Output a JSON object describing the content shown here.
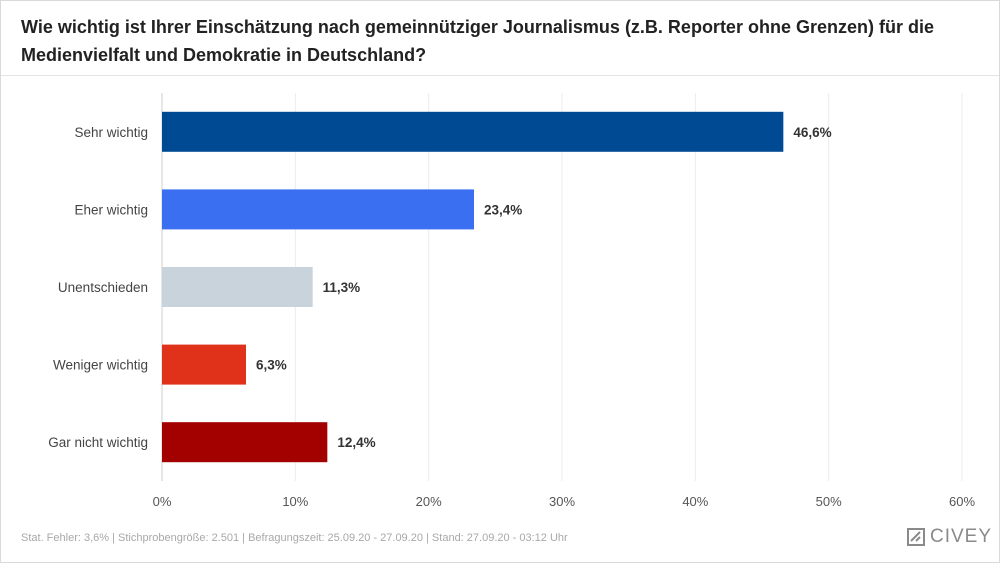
{
  "title": "Wie wichtig ist Ihrer Einschätzung nach gemeinnütziger Journalismus (z.B. Reporter ohne Grenzen) für die Medienvielfalt und Demokratie in Deutschland?",
  "footer": "Stat. Fehler: 3,6% | Stichprobengröße: 2.501 | Befragungszeit: 25.09.20 - 27.09.20 | Stand: 27.09.20 - 03:12 Uhr",
  "brand": {
    "name": "CIVEY",
    "logo_icon": "civey-logo-icon"
  },
  "chart_data": {
    "type": "bar",
    "orientation": "horizontal",
    "categories": [
      "Sehr wichtig",
      "Eher wichtig",
      "Unentschieden",
      "Weniger wichtig",
      "Gar nicht wichtig"
    ],
    "values": [
      46.6,
      23.4,
      11.3,
      6.3,
      12.4
    ],
    "value_labels": [
      "46,6%",
      "23,4%",
      "11,3%",
      "6,3%",
      "12,4%"
    ],
    "colors": [
      "#004a93",
      "#3a6ff2",
      "#c8d3dc",
      "#e0311b",
      "#a30000"
    ],
    "xlim": [
      0,
      60
    ],
    "xticks": [
      0,
      10,
      20,
      30,
      40,
      50,
      60
    ],
    "xtick_labels": [
      "0%",
      "10%",
      "20%",
      "30%",
      "40%",
      "50%",
      "60%"
    ],
    "grid": true
  }
}
